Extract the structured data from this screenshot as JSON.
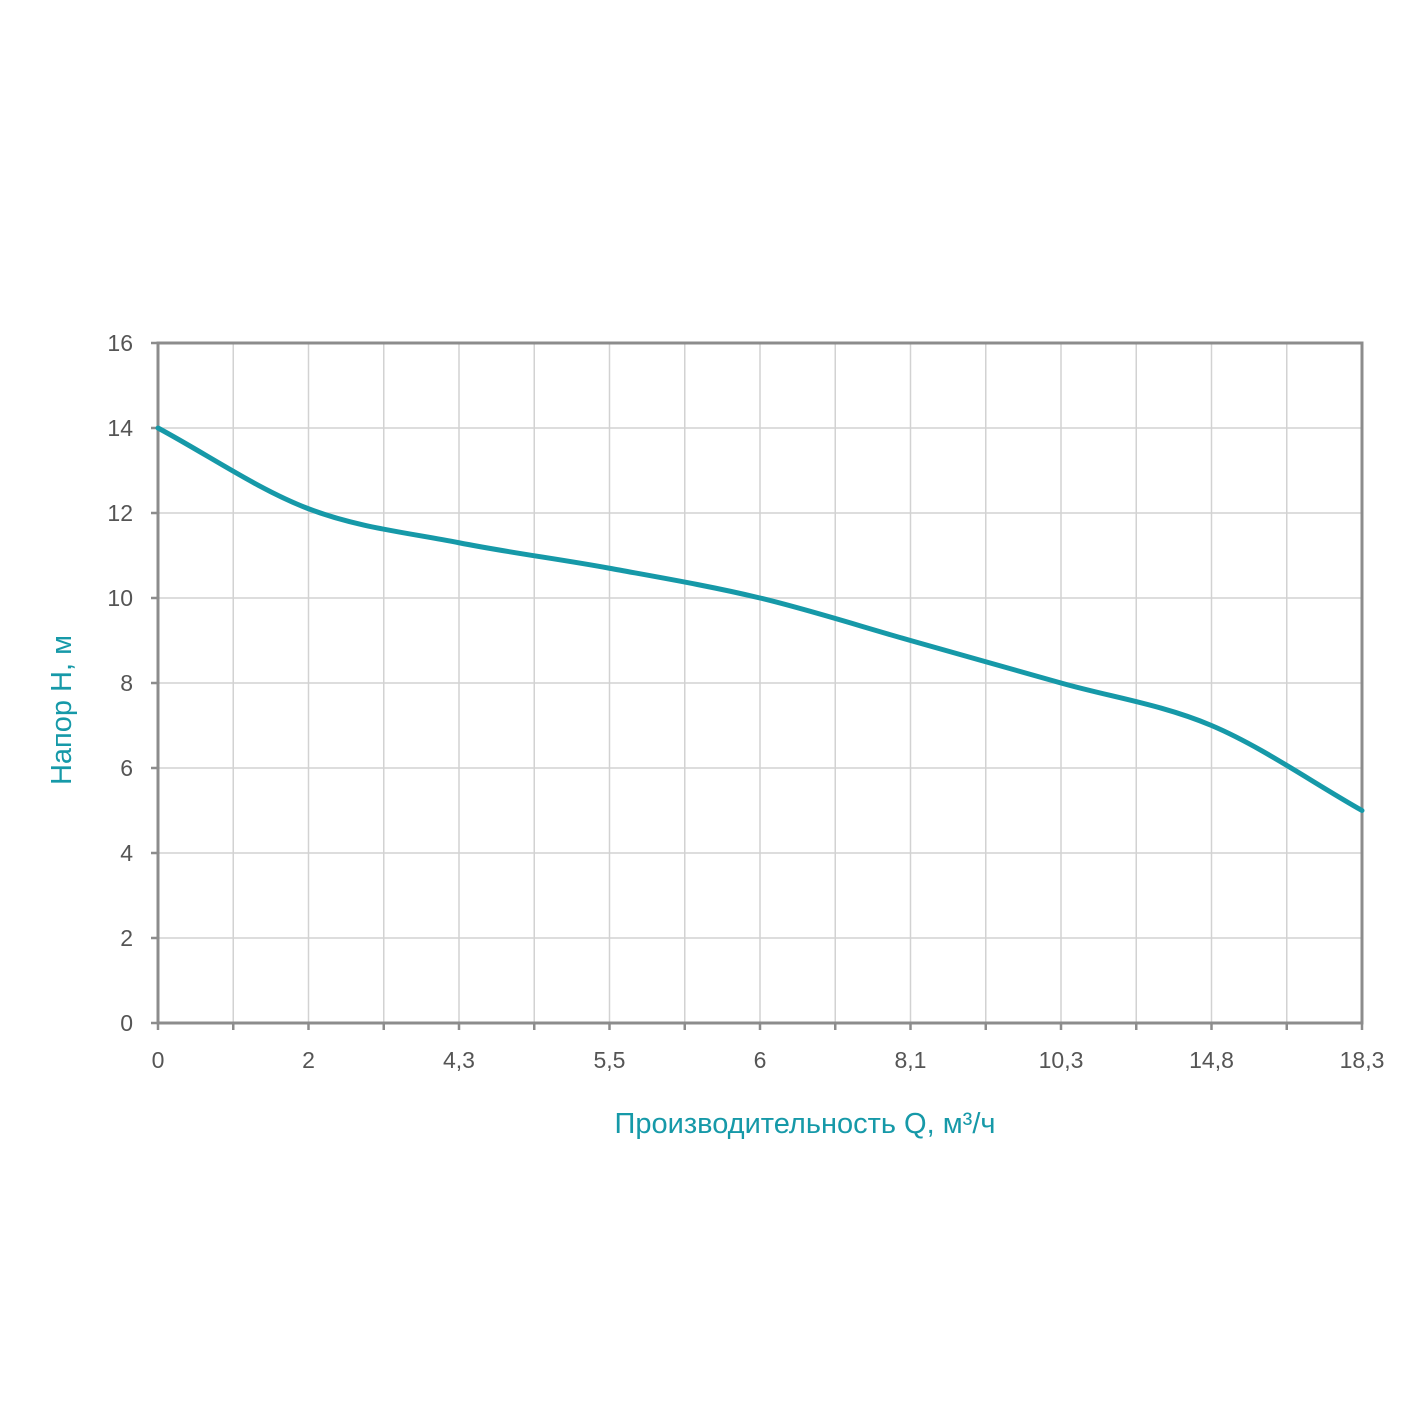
{
  "chart_data": {
    "type": "line",
    "title": "",
    "xlabel": "Производительность Q, м³/ч",
    "ylabel": "Напор H, м",
    "x_tick_labels": [
      "0",
      "2",
      "4,3",
      "5,5",
      "6",
      "8,1",
      "10,3",
      "14,8",
      "18,3"
    ],
    "y_ticks": [
      0,
      2,
      4,
      6,
      8,
      10,
      12,
      14,
      16
    ],
    "y_tick_labels": [
      "0",
      "2",
      "4",
      "6",
      "8",
      "10",
      "12",
      "14",
      "16"
    ],
    "ylim": [
      0,
      16
    ],
    "grid": true,
    "legend": "none",
    "series": [
      {
        "x": [
          "0",
          "2",
          "4,3",
          "5,5",
          "6",
          "8,1",
          "10,3",
          "14,8",
          "18,3"
        ],
        "values": [
          14,
          12.1,
          11.3,
          10.7,
          10,
          9,
          8,
          7,
          5
        ],
        "color": "#1699a8"
      }
    ],
    "colors": {
      "line": "#1699a8",
      "axis_title": "#1699a8",
      "grid": "#d2d2d2",
      "frame": "#8c8c8c",
      "tick_text": "#555555"
    }
  }
}
